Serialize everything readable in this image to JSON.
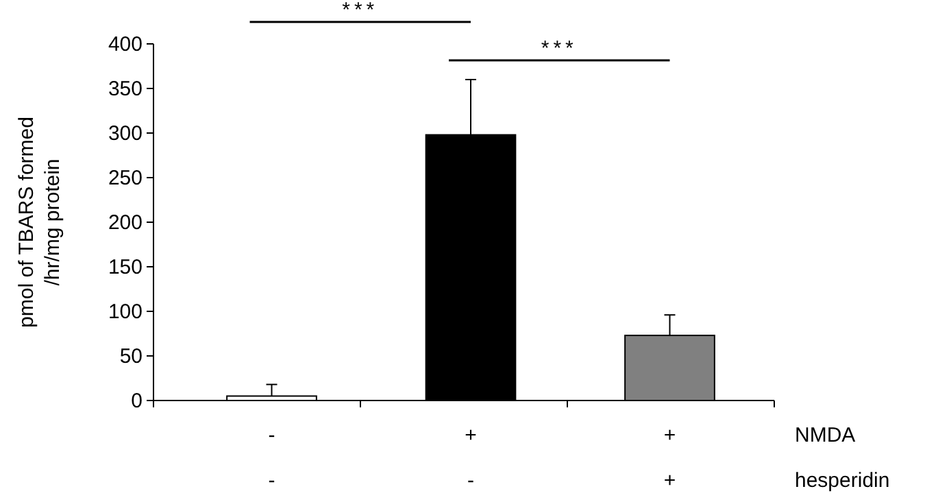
{
  "chart_data": {
    "type": "bar",
    "categories": [
      "-\n-",
      "+\n-",
      "+\n+"
    ],
    "values": [
      5,
      298,
      73
    ],
    "colors": [
      "#ffffff",
      "#000000",
      "#808080"
    ],
    "errors": [
      [
        5,
        18
      ],
      [
        298,
        360
      ],
      [
        73,
        96
      ]
    ],
    "ylabel": "pmol of TBARS formed\n/hr/mg protein",
    "ylim": [
      0,
      400
    ],
    "yticks": [
      0,
      50,
      100,
      150,
      200,
      250,
      300,
      350,
      400
    ],
    "grid": false,
    "annotations": [
      "***",
      "***",
      "NMDA",
      "hesperidin"
    ]
  }
}
